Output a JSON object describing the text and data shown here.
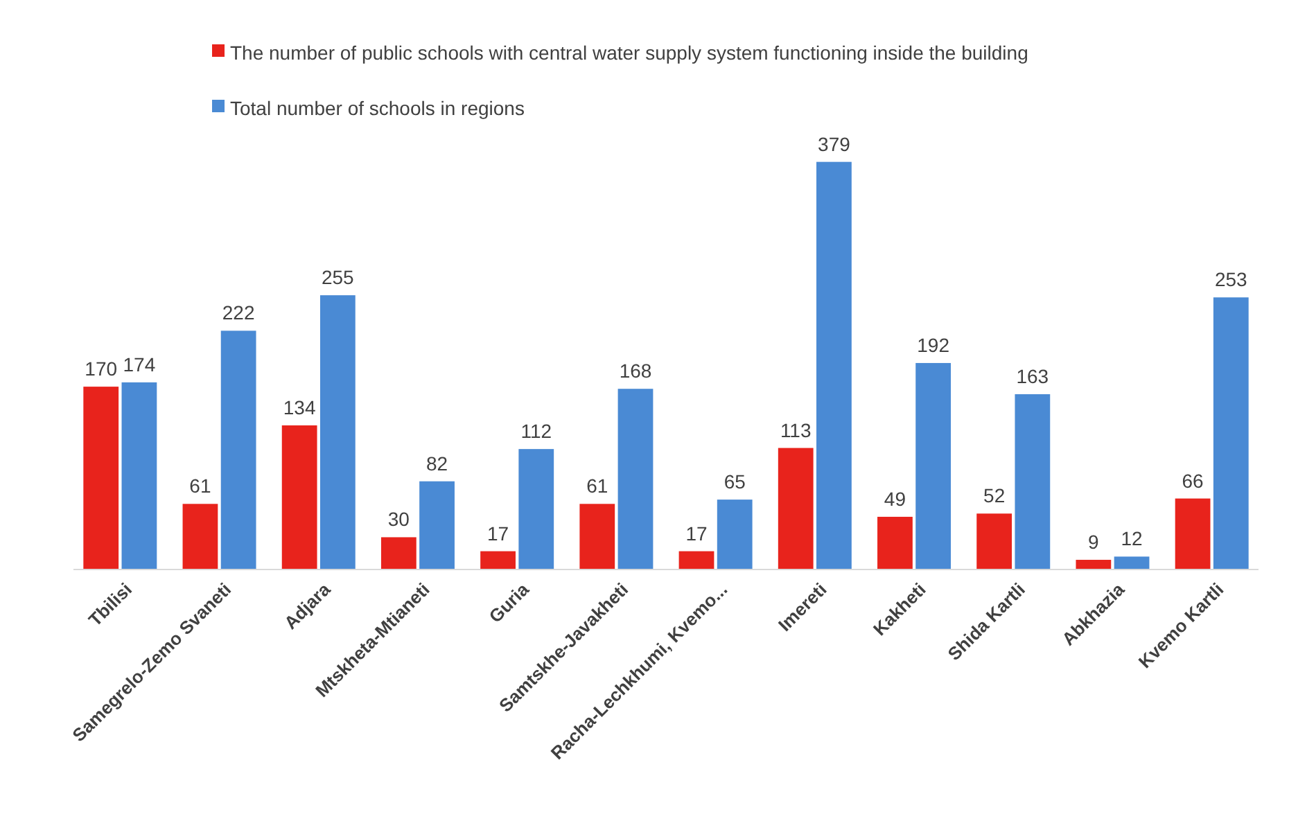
{
  "chart_data": {
    "type": "bar",
    "categories": [
      "Tbilisi",
      "Samegrelo-Zemo Svaneti",
      "Adjara",
      "Mtskheta-Mtianeti",
      "Guria",
      "Samtskhe-Javakheti",
      "Racha-Lechkhumi, Kvemo...",
      "Imereti",
      "Kakheti",
      "Shida Kartli",
      "Abkhazia",
      "Kvemo Kartli"
    ],
    "series": [
      {
        "name": "The number of public schools with central water supply system functioning inside the building",
        "color": "#e8231c",
        "values": [
          170,
          61,
          134,
          30,
          17,
          61,
          17,
          113,
          49,
          52,
          9,
          66
        ]
      },
      {
        "name": "Total number of schools in regions",
        "color": "#4a8ad4",
        "values": [
          174,
          222,
          255,
          82,
          112,
          168,
          65,
          379,
          192,
          163,
          12,
          253
        ]
      }
    ],
    "data_labels": true,
    "legend": "top"
  }
}
